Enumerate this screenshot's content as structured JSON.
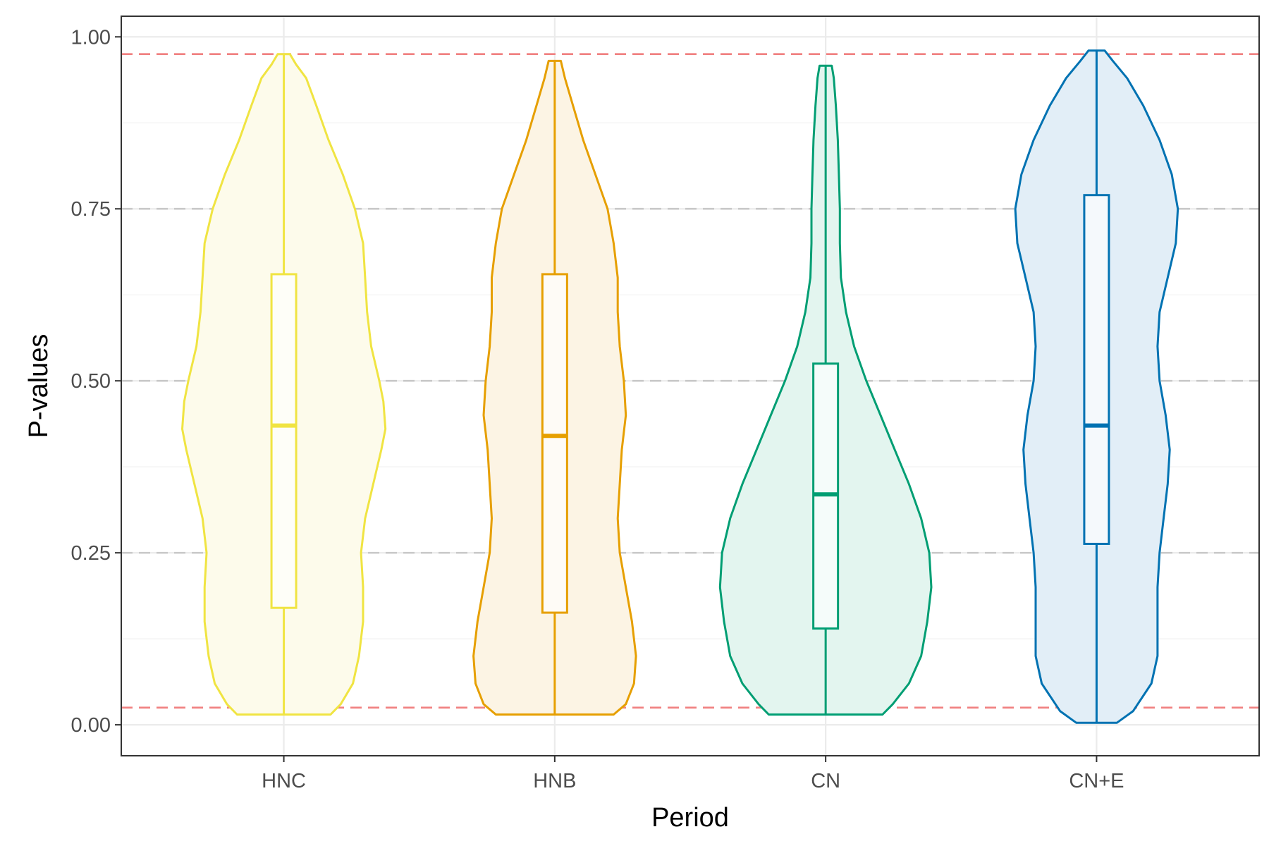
{
  "chart_data": {
    "type": "violin",
    "xlabel": "Period",
    "ylabel": "P-values",
    "ylim": [
      -0.045,
      1.03
    ],
    "yticks": [
      0.0,
      0.25,
      0.5,
      0.75,
      1.0
    ],
    "ytick_labels": [
      "0.00",
      "0.25",
      "0.50",
      "0.75",
      "1.00"
    ],
    "grid": true,
    "reference_lines": [
      {
        "kind": "threshold",
        "value": 0.025,
        "color": "#f08080",
        "style": "dashed"
      },
      {
        "kind": "threshold",
        "value": 0.975,
        "color": "#f08080",
        "style": "dashed"
      },
      {
        "kind": "guide",
        "value": 0.25,
        "color": "#c8c8c8",
        "style": "dashed"
      },
      {
        "kind": "guide",
        "value": 0.5,
        "color": "#c8c8c8",
        "style": "dashed"
      },
      {
        "kind": "guide",
        "value": 0.75,
        "color": "#c8c8c8",
        "style": "dashed"
      }
    ],
    "categories": [
      "HNC",
      "HNB",
      "CN",
      "CN+E"
    ],
    "series": [
      {
        "category": "HNC",
        "color": "#f0e442",
        "fill": "#fdfbeb",
        "min": 0.015,
        "q1": 0.17,
        "median": 0.435,
        "q3": 0.655,
        "max": 0.975,
        "density": [
          [
            0.015,
            0.23
          ],
          [
            0.03,
            0.28
          ],
          [
            0.06,
            0.34
          ],
          [
            0.1,
            0.37
          ],
          [
            0.15,
            0.39
          ],
          [
            0.2,
            0.39
          ],
          [
            0.25,
            0.38
          ],
          [
            0.3,
            0.4
          ],
          [
            0.35,
            0.44
          ],
          [
            0.4,
            0.48
          ],
          [
            0.43,
            0.5
          ],
          [
            0.47,
            0.49
          ],
          [
            0.5,
            0.47
          ],
          [
            0.55,
            0.43
          ],
          [
            0.6,
            0.41
          ],
          [
            0.65,
            0.4
          ],
          [
            0.7,
            0.39
          ],
          [
            0.75,
            0.35
          ],
          [
            0.8,
            0.29
          ],
          [
            0.85,
            0.22
          ],
          [
            0.9,
            0.16
          ],
          [
            0.94,
            0.11
          ],
          [
            0.96,
            0.06
          ],
          [
            0.975,
            0.03
          ]
        ]
      },
      {
        "category": "HNB",
        "color": "#e69f00",
        "fill": "#fcf4e4",
        "min": 0.015,
        "q1": 0.163,
        "median": 0.42,
        "q3": 0.655,
        "max": 0.965,
        "density": [
          [
            0.015,
            0.29
          ],
          [
            0.03,
            0.35
          ],
          [
            0.06,
            0.39
          ],
          [
            0.1,
            0.4
          ],
          [
            0.15,
            0.38
          ],
          [
            0.2,
            0.35
          ],
          [
            0.25,
            0.32
          ],
          [
            0.3,
            0.31
          ],
          [
            0.35,
            0.32
          ],
          [
            0.4,
            0.33
          ],
          [
            0.45,
            0.35
          ],
          [
            0.5,
            0.34
          ],
          [
            0.55,
            0.32
          ],
          [
            0.6,
            0.31
          ],
          [
            0.65,
            0.31
          ],
          [
            0.7,
            0.29
          ],
          [
            0.75,
            0.26
          ],
          [
            0.8,
            0.2
          ],
          [
            0.85,
            0.14
          ],
          [
            0.9,
            0.09
          ],
          [
            0.94,
            0.05
          ],
          [
            0.965,
            0.03
          ]
        ]
      },
      {
        "category": "CN",
        "color": "#009e73",
        "fill": "#e3f5ef",
        "min": 0.015,
        "q1": 0.14,
        "median": 0.335,
        "q3": 0.525,
        "max": 0.958,
        "density": [
          [
            0.015,
            0.28
          ],
          [
            0.03,
            0.33
          ],
          [
            0.06,
            0.41
          ],
          [
            0.1,
            0.47
          ],
          [
            0.15,
            0.5
          ],
          [
            0.2,
            0.52
          ],
          [
            0.25,
            0.51
          ],
          [
            0.3,
            0.47
          ],
          [
            0.35,
            0.41
          ],
          [
            0.4,
            0.34
          ],
          [
            0.45,
            0.27
          ],
          [
            0.5,
            0.2
          ],
          [
            0.55,
            0.14
          ],
          [
            0.6,
            0.1
          ],
          [
            0.65,
            0.075
          ],
          [
            0.7,
            0.07
          ],
          [
            0.75,
            0.07
          ],
          [
            0.8,
            0.065
          ],
          [
            0.85,
            0.06
          ],
          [
            0.9,
            0.05
          ],
          [
            0.94,
            0.04
          ],
          [
            0.958,
            0.03
          ]
        ]
      },
      {
        "category": "CN+E",
        "color": "#0072b2",
        "fill": "#e2eef7",
        "min": 0.003,
        "q1": 0.263,
        "median": 0.435,
        "q3": 0.77,
        "max": 0.98,
        "density": [
          [
            0.003,
            0.1
          ],
          [
            0.02,
            0.18
          ],
          [
            0.06,
            0.27
          ],
          [
            0.1,
            0.3
          ],
          [
            0.15,
            0.3
          ],
          [
            0.2,
            0.3
          ],
          [
            0.25,
            0.31
          ],
          [
            0.3,
            0.33
          ],
          [
            0.35,
            0.35
          ],
          [
            0.4,
            0.36
          ],
          [
            0.45,
            0.34
          ],
          [
            0.5,
            0.31
          ],
          [
            0.55,
            0.3
          ],
          [
            0.6,
            0.31
          ],
          [
            0.65,
            0.35
          ],
          [
            0.7,
            0.39
          ],
          [
            0.75,
            0.4
          ],
          [
            0.8,
            0.37
          ],
          [
            0.85,
            0.31
          ],
          [
            0.9,
            0.23
          ],
          [
            0.94,
            0.15
          ],
          [
            0.965,
            0.08
          ],
          [
            0.98,
            0.04
          ]
        ]
      }
    ]
  }
}
